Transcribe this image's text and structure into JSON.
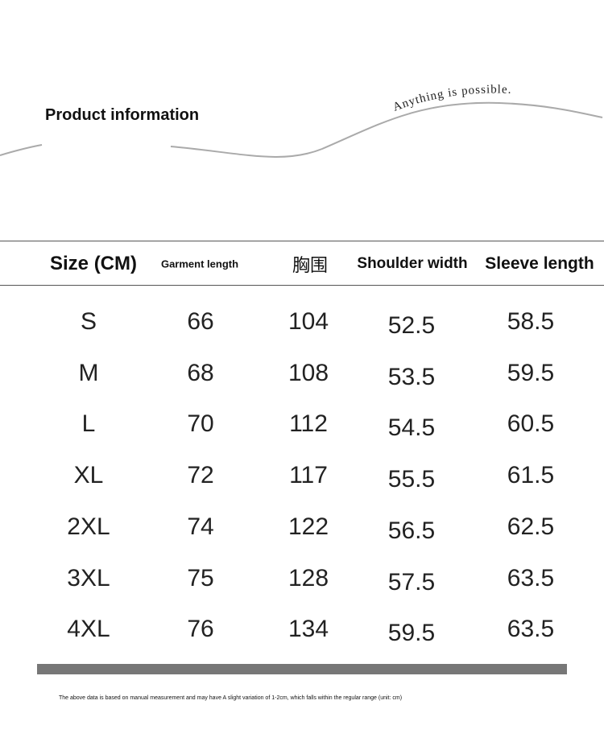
{
  "header": {
    "title": "Product information",
    "tagline": "Anything is possible."
  },
  "table": {
    "columns": [
      "Size (CM)",
      "Garment length",
      "胸围",
      "Shoulder width",
      "Sleeve length"
    ],
    "rows": [
      [
        "S",
        66,
        104,
        52.5,
        58.5
      ],
      [
        "M",
        68,
        108,
        53.5,
        59.5
      ],
      [
        "L",
        70,
        112,
        54.5,
        60.5
      ],
      [
        "XL",
        72,
        117,
        55.5,
        61.5
      ],
      [
        "2XL",
        74,
        122,
        56.5,
        62.5
      ],
      [
        "3XL",
        75,
        128,
        57.5,
        63.5
      ],
      [
        "4XL",
        76,
        134,
        59.5,
        63.5
      ]
    ]
  },
  "footnote": "The above data is based on manual measurement and may have A slight variation of 1-2cm, which falls within the regular range (unit: cm)"
}
